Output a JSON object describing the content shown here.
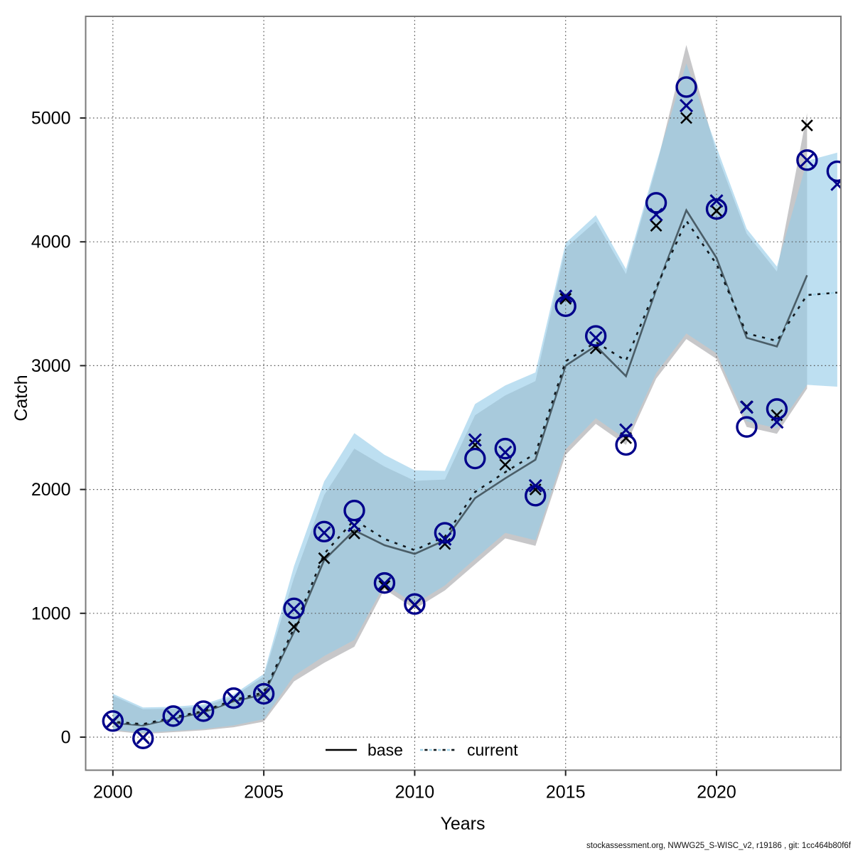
{
  "footer": {
    "text": "stockassessment.org, NWWG25_S-WISC_v2, r19186 , git: 1cc464b80f6f"
  },
  "colors": {
    "grid": "#555555",
    "frame": "#7a7a7a",
    "tick": "#222222",
    "base_band": "#c7c7c9",
    "current_band": "#94cbe9",
    "current_band_opacity": 0.62,
    "base_line": "#3a4a52",
    "base_line_opacity": 0.85,
    "current_line_light": "#9fd2e8",
    "current_line_dark": "#10181d",
    "obs_base": "#000000",
    "obs_current": "#00008b",
    "circle": "#00008b"
  },
  "chart_data": {
    "type": "line",
    "title": "",
    "xlabel": "Years",
    "ylabel": "Catch",
    "x_ticks": [
      2000,
      2005,
      2010,
      2015,
      2020
    ],
    "y_ticks": [
      0,
      1000,
      2000,
      3000,
      4000,
      5000
    ],
    "x_range": [
      1999.1,
      2024.1
    ],
    "y_range": [
      -270,
      5820
    ],
    "grid": "dotted-both-directions",
    "legend": {
      "position": "bottom-center-inside",
      "entries": [
        {
          "label": "base",
          "style": "solid",
          "color": "#000000"
        },
        {
          "label": "current",
          "style": "dotted",
          "color": "#94cbe9"
        }
      ]
    },
    "series": [
      {
        "name": "base_ci_band",
        "type": "band",
        "color": "#c7c7c9",
        "years": [
          2000,
          2001,
          2002,
          2003,
          2004,
          2005,
          2006,
          2007,
          2008,
          2009,
          2010,
          2011,
          2012,
          2013,
          2014,
          2015,
          2016,
          2017,
          2018,
          2019,
          2020,
          2021,
          2022,
          2023
        ],
        "lo": [
          50,
          25,
          40,
          55,
          80,
          125,
          450,
          600,
          730,
          1195,
          1035,
          1185,
          1395,
          1605,
          1545,
          2280,
          2530,
          2360,
          2895,
          3215,
          3055,
          2505,
          2450,
          2815
        ],
        "hi": [
          335,
          225,
          230,
          250,
          330,
          490,
          1285,
          1955,
          2330,
          2185,
          2070,
          2080,
          2600,
          2760,
          2875,
          3950,
          4165,
          3740,
          4600,
          5590,
          4715,
          4065,
          3760,
          5040
        ]
      },
      {
        "name": "current_ci_band",
        "type": "band",
        "color": "#94cbe9",
        "opacity": 0.62,
        "years": [
          2000,
          2001,
          2002,
          2003,
          2004,
          2005,
          2006,
          2007,
          2008,
          2009,
          2010,
          2011,
          2012,
          2013,
          2014,
          2015,
          2016,
          2017,
          2018,
          2019,
          2020,
          2021,
          2022,
          2023,
          2024
        ],
        "lo": [
          60,
          35,
          50,
          65,
          95,
          145,
          495,
          655,
          785,
          1235,
          1075,
          1225,
          1440,
          1650,
          1590,
          2325,
          2575,
          2405,
          2940,
          3260,
          3100,
          2550,
          2495,
          2845,
          2830
        ],
        "hi": [
          350,
          240,
          245,
          265,
          345,
          510,
          1380,
          2065,
          2455,
          2280,
          2155,
          2150,
          2690,
          2840,
          2945,
          3990,
          4215,
          3780,
          4630,
          5440,
          4765,
          4105,
          3800,
          4655,
          4720
        ]
      },
      {
        "name": "base_fit",
        "type": "line",
        "style": "solid",
        "color": "#3a4a52",
        "years": [
          2000,
          2001,
          2002,
          2003,
          2004,
          2005,
          2006,
          2007,
          2008,
          2009,
          2010,
          2011,
          2012,
          2013,
          2014,
          2015,
          2016,
          2017,
          2018,
          2019,
          2020,
          2021,
          2022,
          2023
        ],
        "values": [
          115,
          95,
          150,
          200,
          290,
          345,
          850,
          1430,
          1670,
          1550,
          1480,
          1590,
          1930,
          2090,
          2240,
          3000,
          3160,
          2915,
          3615,
          4255,
          3870,
          3225,
          3155,
          3730
        ]
      },
      {
        "name": "current_fit",
        "type": "line",
        "style": "dotted",
        "color": "#94cbe9",
        "years": [
          2000,
          2001,
          2002,
          2003,
          2004,
          2005,
          2006,
          2007,
          2008,
          2009,
          2010,
          2011,
          2012,
          2013,
          2014,
          2015,
          2016,
          2017,
          2018,
          2019,
          2020,
          2021,
          2022,
          2023,
          2024
        ],
        "values": [
          125,
          105,
          160,
          210,
          300,
          360,
          880,
          1480,
          1755,
          1600,
          1510,
          1620,
          1980,
          2140,
          2290,
          3035,
          3190,
          3040,
          3630,
          4170,
          3820,
          3260,
          3200,
          3570,
          3590
        ]
      },
      {
        "name": "base_observed_catch",
        "type": "points",
        "marker": "x",
        "color": "#000000",
        "years": [
          2000,
          2001,
          2002,
          2003,
          2004,
          2005,
          2006,
          2007,
          2008,
          2009,
          2010,
          2011,
          2012,
          2013,
          2014,
          2015,
          2016,
          2017,
          2018,
          2019,
          2020,
          2021,
          2022,
          2023
        ],
        "values": [
          125,
          0,
          165,
          205,
          310,
          340,
          890,
          1445,
          1645,
          1220,
          1065,
          1560,
          2360,
          2200,
          2000,
          3540,
          3140,
          2415,
          4130,
          5000,
          4250,
          2670,
          2600,
          4940
        ]
      },
      {
        "name": "current_observed_catch",
        "type": "points",
        "marker": "x",
        "color": "#00008b",
        "years": [
          2000,
          2001,
          2002,
          2003,
          2004,
          2005,
          2006,
          2007,
          2008,
          2009,
          2010,
          2011,
          2012,
          2013,
          2014,
          2015,
          2016,
          2017,
          2018,
          2019,
          2020,
          2021,
          2022,
          2023,
          2024
        ],
        "values": [
          130,
          -5,
          165,
          210,
          315,
          345,
          1035,
          1650,
          1710,
          1240,
          1070,
          1600,
          2400,
          2300,
          2030,
          3560,
          3225,
          2480,
          4220,
          5100,
          4330,
          2665,
          2545,
          4660,
          4465
        ]
      },
      {
        "name": "current_predicted_catch",
        "type": "points",
        "marker": "circle",
        "color": "#00008b",
        "years": [
          2000,
          2001,
          2002,
          2003,
          2004,
          2005,
          2006,
          2007,
          2008,
          2009,
          2010,
          2011,
          2012,
          2013,
          2014,
          2015,
          2016,
          2017,
          2018,
          2019,
          2020,
          2021,
          2022,
          2023,
          2024
        ],
        "values": [
          130,
          -10,
          170,
          210,
          315,
          350,
          1040,
          1660,
          1830,
          1245,
          1075,
          1650,
          2250,
          2330,
          1950,
          3480,
          3240,
          2360,
          4315,
          5250,
          4265,
          2505,
          2650,
          4660,
          4570
        ]
      }
    ]
  }
}
